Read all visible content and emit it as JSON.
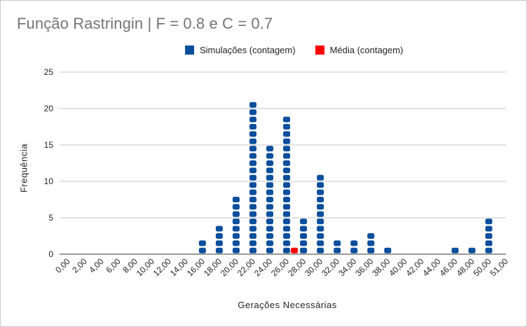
{
  "chart_data": {
    "type": "bar",
    "title": "Função Rastringin | F = 0.8 e C = 0.7",
    "xlabel": "Gerações Necessárias",
    "ylabel": "Frequência",
    "ylim": [
      0,
      25
    ],
    "yticks": [
      "0",
      "5",
      "10",
      "15",
      "20",
      "25"
    ],
    "grid": true,
    "legend_position": "top",
    "categories": [
      "0,00",
      "2,00",
      "4,00",
      "6,00",
      "8,00",
      "10,00",
      "12,00",
      "14,00",
      "16,00",
      "18,00",
      "20,00",
      "22,00",
      "24,00",
      "26,00",
      "28,00",
      "30,00",
      "32,00",
      "34,00",
      "36,00",
      "38,00",
      "40,00",
      "42,00",
      "44,00",
      "46,00",
      "48,00",
      "50,00",
      "51,00"
    ],
    "series": [
      {
        "name": "Simulações (contagem)",
        "color": "#0b4e9c",
        "values": [
          0,
          0,
          0,
          0,
          0,
          0,
          0,
          0,
          2,
          4,
          8,
          21,
          15,
          19,
          5,
          11,
          2,
          2,
          3,
          1,
          0,
          0,
          0,
          1,
          1,
          5,
          0
        ]
      },
      {
        "name": "Média  (contagem)",
        "color": "#ff0000",
        "values": [
          0,
          0,
          0,
          0,
          0,
          0,
          0,
          0,
          0,
          0,
          0,
          0,
          0,
          1,
          0,
          0,
          0,
          0,
          0,
          0,
          0,
          0,
          0,
          0,
          0,
          0,
          0
        ]
      }
    ]
  }
}
